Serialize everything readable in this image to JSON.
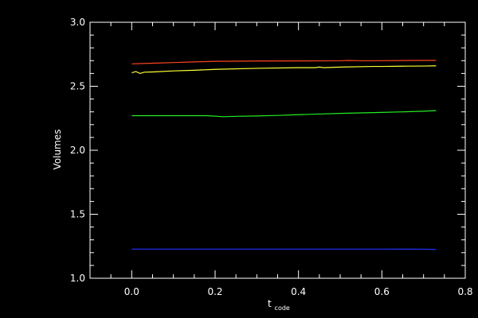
{
  "chart_data": {
    "type": "line",
    "title": "",
    "xlabel": "t",
    "xlabel_subscript": "code",
    "ylabel": "Volumes",
    "xlim": [
      -0.1,
      0.8
    ],
    "ylim": [
      1.0,
      3.0
    ],
    "x_ticks": [
      0.0,
      0.2,
      0.4,
      0.6,
      0.8
    ],
    "x_tick_labels": [
      "0.0",
      "0.2",
      "0.4",
      "0.6",
      "0.8"
    ],
    "y_ticks": [
      1.0,
      1.5,
      2.0,
      2.5,
      3.0
    ],
    "y_tick_labels": [
      "1.0",
      "1.5",
      "2.0",
      "2.5",
      "3.0"
    ],
    "grid": false,
    "background": "#000000",
    "axis_color": "#ffffff",
    "series": [
      {
        "color": "#ff4422",
        "x": [
          0.0,
          0.05,
          0.1,
          0.15,
          0.2,
          0.3,
          0.4,
          0.5,
          0.52,
          0.55,
          0.6,
          0.65,
          0.7,
          0.73
        ],
        "y": [
          2.675,
          2.68,
          2.685,
          2.69,
          2.695,
          2.697,
          2.698,
          2.699,
          2.702,
          2.699,
          2.7,
          2.701,
          2.702,
          2.702
        ]
      },
      {
        "color": "#ffff33",
        "x": [
          0.0,
          0.01,
          0.02,
          0.03,
          0.05,
          0.1,
          0.15,
          0.2,
          0.3,
          0.4,
          0.44,
          0.45,
          0.46,
          0.5,
          0.58,
          0.6,
          0.65,
          0.7,
          0.73
        ],
        "y": [
          2.605,
          2.615,
          2.6,
          2.61,
          2.612,
          2.62,
          2.625,
          2.632,
          2.64,
          2.645,
          2.645,
          2.65,
          2.645,
          2.65,
          2.655,
          2.655,
          2.657,
          2.658,
          2.66
        ]
      },
      {
        "color": "#22ee22",
        "x": [
          0.0,
          0.05,
          0.1,
          0.18,
          0.22,
          0.25,
          0.3,
          0.35,
          0.4,
          0.45,
          0.5,
          0.55,
          0.6,
          0.65,
          0.7,
          0.73
        ],
        "y": [
          2.27,
          2.27,
          2.27,
          2.27,
          2.262,
          2.265,
          2.268,
          2.272,
          2.278,
          2.283,
          2.288,
          2.292,
          2.296,
          2.3,
          2.305,
          2.31
        ]
      },
      {
        "color": "#2233ff",
        "x": [
          0.0,
          0.2,
          0.4,
          0.6,
          0.7,
          0.73
        ],
        "y": [
          1.228,
          1.228,
          1.228,
          1.228,
          1.227,
          1.225
        ]
      }
    ]
  }
}
